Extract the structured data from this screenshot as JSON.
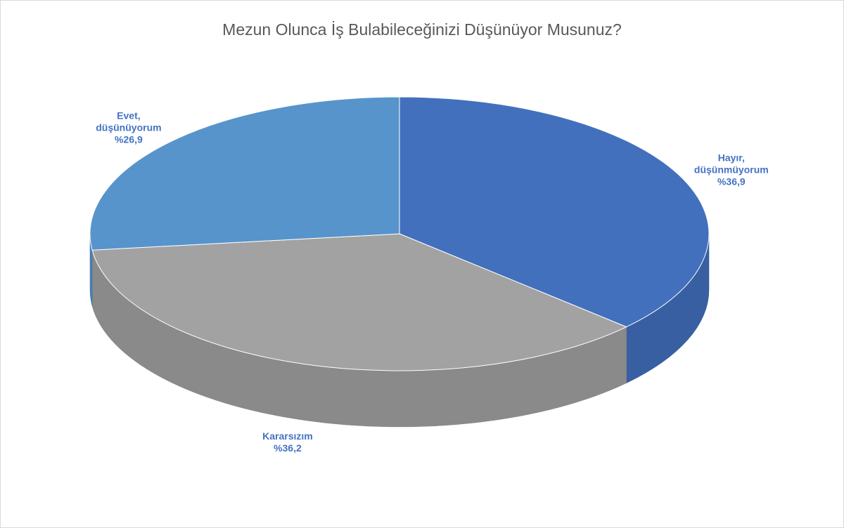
{
  "chart_data": {
    "type": "pie3d",
    "title": "Mezun Olunca İş Bulabileceğinizi Düşünüyor Musunuz?",
    "categories": [
      "Hayır, düşünmüyorum",
      "Kararsızım",
      "Evet, düşünüyorum"
    ],
    "values": [
      36.9,
      36.2,
      26.9
    ],
    "value_labels": [
      "%36,9",
      "%36,2",
      "%26,9"
    ],
    "colors": [
      "#4270bd",
      "#a2a2a2",
      "#5794cb"
    ]
  }
}
